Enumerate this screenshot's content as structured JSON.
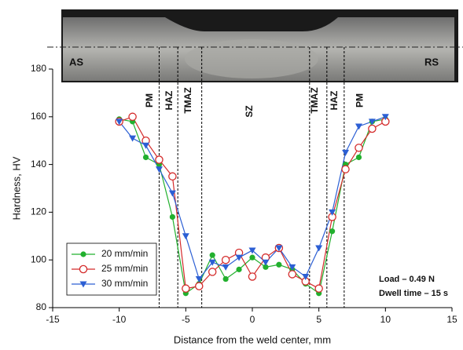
{
  "chart_data": {
    "type": "line",
    "xlabel": "Distance from the weld center, mm",
    "ylabel": "Hardness, HV",
    "xlim": [
      -15,
      15
    ],
    "xticks": [
      -15,
      -10,
      -5,
      0,
      5,
      10,
      15
    ],
    "ylim": [
      80,
      180
    ],
    "yticks": [
      80,
      100,
      120,
      140,
      160,
      180
    ],
    "x": [
      -10,
      -9,
      -8,
      -7,
      -6,
      -5,
      -4,
      -3,
      -2,
      -1,
      0,
      1,
      2,
      3,
      4,
      5,
      6,
      7,
      8,
      9,
      10
    ],
    "series": [
      {
        "name": "20 mm/min",
        "color": "#22b02e",
        "marker": "circle",
        "values": [
          159,
          158,
          143,
          140,
          118,
          86,
          90,
          102,
          92,
          96,
          101,
          97,
          98,
          96,
          90,
          86,
          112,
          140,
          143,
          158,
          159
        ]
      },
      {
        "name": "25 mm/min",
        "color": "#d42b2b",
        "marker": "open-circle",
        "values": [
          158,
          160,
          150,
          142,
          135,
          88,
          89,
          95,
          100,
          103,
          93,
          101,
          105,
          94,
          91,
          88,
          118,
          138,
          147,
          155,
          158
        ]
      },
      {
        "name": "30 mm/min",
        "color": "#2c5fd4",
        "marker": "triangle-down",
        "values": [
          158,
          151,
          148,
          138,
          128,
          110,
          92,
          99,
          97,
          101,
          104,
          99,
          105,
          97,
          93,
          105,
          120,
          145,
          156,
          158,
          160
        ]
      }
    ],
    "zone_boundaries": [
      -7.0,
      -5.6,
      -3.8,
      4.3,
      5.6,
      6.9
    ],
    "zone_labels": [
      "PM",
      "HAZ",
      "TMAZ",
      "SZ",
      "TMAZ",
      "HAZ",
      "PM"
    ],
    "photo_labels": [
      "AS",
      "RS"
    ],
    "annotations": [
      "Load – 0.49 N",
      "Dwell time – 15 s"
    ],
    "legend": "lower left"
  }
}
